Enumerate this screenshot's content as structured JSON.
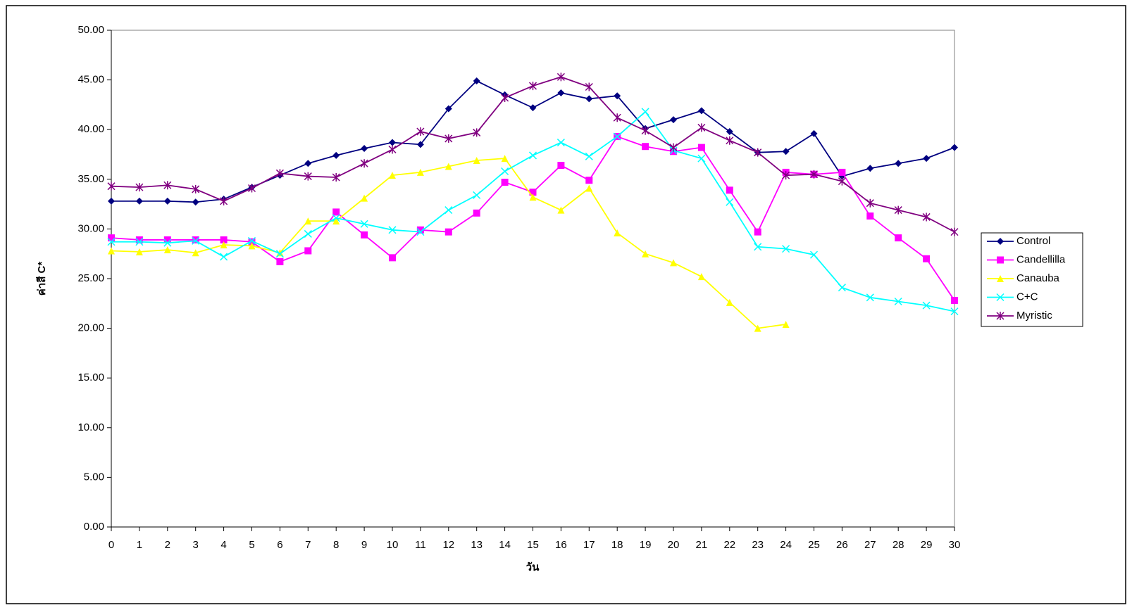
{
  "chart_data": {
    "type": "line",
    "x_label": "วัน",
    "y_label": "ค่าสี C*",
    "x": [
      0,
      1,
      2,
      3,
      4,
      5,
      6,
      7,
      8,
      9,
      10,
      11,
      12,
      13,
      14,
      15,
      16,
      17,
      18,
      19,
      20,
      21,
      22,
      23,
      24,
      25,
      26,
      27,
      28,
      29,
      30
    ],
    "xlim": [
      0,
      30
    ],
    "xticks": [
      0,
      1,
      2,
      3,
      4,
      5,
      6,
      7,
      8,
      9,
      10,
      11,
      12,
      13,
      14,
      15,
      16,
      17,
      18,
      19,
      20,
      21,
      22,
      23,
      24,
      25,
      26,
      27,
      28,
      29,
      30
    ],
    "ylim": [
      0,
      50
    ],
    "yticks": [
      {
        "value": 0,
        "label": "0.00"
      },
      {
        "value": 5,
        "label": "5.00"
      },
      {
        "value": 10,
        "label": "10.00"
      },
      {
        "value": 15,
        "label": "15.00"
      },
      {
        "value": 20,
        "label": "20.00"
      },
      {
        "value": 25,
        "label": "25.00"
      },
      {
        "value": 30,
        "label": "30.00"
      },
      {
        "value": 35,
        "label": "35.00"
      },
      {
        "value": 40,
        "label": "40.00"
      },
      {
        "value": 45,
        "label": "45.00"
      },
      {
        "value": 50,
        "label": "50.00"
      }
    ],
    "legend": "right",
    "series": [
      {
        "name": "Control",
        "color": "#000080",
        "marker": "diamond",
        "values": [
          32.8,
          32.8,
          32.8,
          32.7,
          33.0,
          34.2,
          35.4,
          36.6,
          37.4,
          38.1,
          38.7,
          38.5,
          42.1,
          44.9,
          43.5,
          42.2,
          43.7,
          43.1,
          43.4,
          40.1,
          41.0,
          41.9,
          39.8,
          37.7,
          37.8,
          39.6,
          35.3,
          36.1,
          36.6,
          37.1,
          38.2
        ]
      },
      {
        "name": "Candellilla",
        "color": "#ff00ff",
        "marker": "square",
        "values": [
          29.1,
          28.9,
          28.9,
          28.9,
          28.9,
          28.7,
          26.7,
          27.8,
          31.7,
          29.4,
          27.1,
          29.9,
          29.7,
          31.6,
          34.7,
          33.7,
          36.4,
          34.9,
          39.3,
          38.3,
          37.8,
          38.2,
          33.9,
          29.7,
          35.7,
          35.5,
          35.7,
          31.3,
          29.1,
          27.0,
          22.8
        ]
      },
      {
        "name": "Canauba",
        "color": "#ffff00",
        "marker": "triangle",
        "values": [
          27.8,
          27.7,
          27.9,
          27.6,
          28.4,
          28.3,
          27.6,
          30.8,
          30.8,
          33.1,
          35.4,
          35.7,
          36.3,
          36.9,
          37.1,
          33.2,
          31.9,
          34.1,
          29.6,
          27.5,
          26.6,
          25.2,
          22.6,
          20.0,
          20.4,
          null,
          null,
          null,
          null,
          null,
          null
        ]
      },
      {
        "name": "C+C",
        "color": "#00ffff",
        "marker": "x",
        "values": [
          28.7,
          28.7,
          28.6,
          28.8,
          27.2,
          28.8,
          27.5,
          29.5,
          31.1,
          30.5,
          29.9,
          29.7,
          31.9,
          33.4,
          35.8,
          37.4,
          38.7,
          37.3,
          39.3,
          41.8,
          37.9,
          37.1,
          32.7,
          28.2,
          28.0,
          27.4,
          24.1,
          23.1,
          22.7,
          22.3,
          21.7
        ]
      },
      {
        "name": "Myristic",
        "color": "#800080",
        "marker": "asterisk",
        "values": [
          34.3,
          34.2,
          34.4,
          34.0,
          32.8,
          34.1,
          35.6,
          35.3,
          35.2,
          36.6,
          38.0,
          39.8,
          39.1,
          39.7,
          43.2,
          44.4,
          45.3,
          44.3,
          41.2,
          39.9,
          38.2,
          40.2,
          38.9,
          37.7,
          35.4,
          35.5,
          34.8,
          32.6,
          31.9,
          31.2,
          29.7
        ]
      }
    ]
  }
}
